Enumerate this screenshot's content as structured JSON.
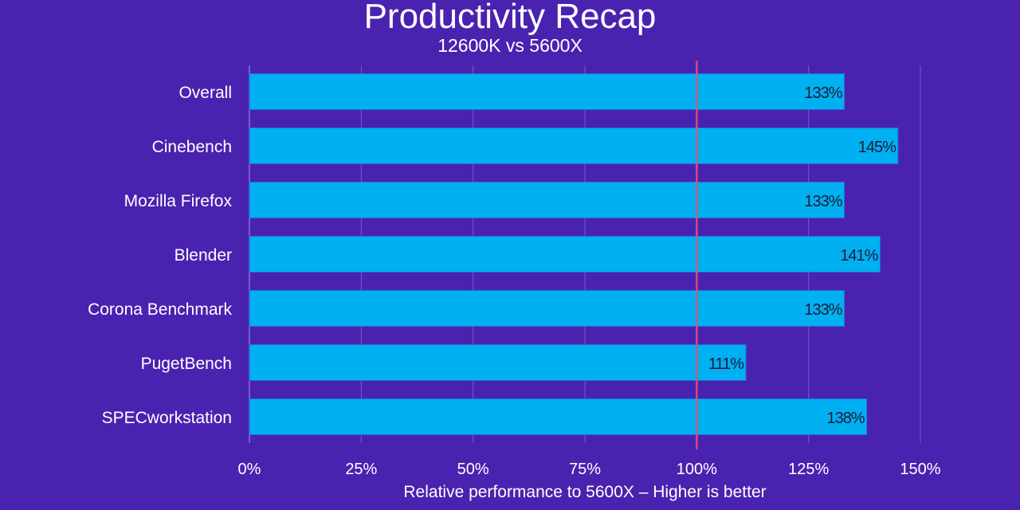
{
  "chart_data": {
    "type": "bar",
    "orientation": "horizontal",
    "title": "Productivity Recap",
    "subtitle": "12600K vs 5600X",
    "xlabel": "Relative performance to 5600X – Higher is better",
    "ylabel": "",
    "categories": [
      "Overall",
      "Cinebench",
      "Mozilla Firefox",
      "Blender",
      "Corona Benchmark",
      "PugetBench",
      "SPECworkstation"
    ],
    "values": [
      133,
      145,
      133,
      141,
      133,
      111,
      138
    ],
    "value_labels": [
      "133%",
      "145%",
      "133%",
      "141%",
      "133%",
      "111%",
      "138%"
    ],
    "xlim": [
      0,
      150
    ],
    "xticks": [
      0,
      25,
      50,
      75,
      100,
      125,
      150
    ],
    "xtick_labels": [
      "0%",
      "25%",
      "50%",
      "75%",
      "100%",
      "125%",
      "150%"
    ],
    "reference_line": 100,
    "grid": true,
    "colors": {
      "background": "#4a22b0",
      "bar": "#00b0f0",
      "reference": "#e0507a",
      "grid": "#8a70d0",
      "text": "#ffffff",
      "value_text": "#1a1a3a"
    }
  }
}
